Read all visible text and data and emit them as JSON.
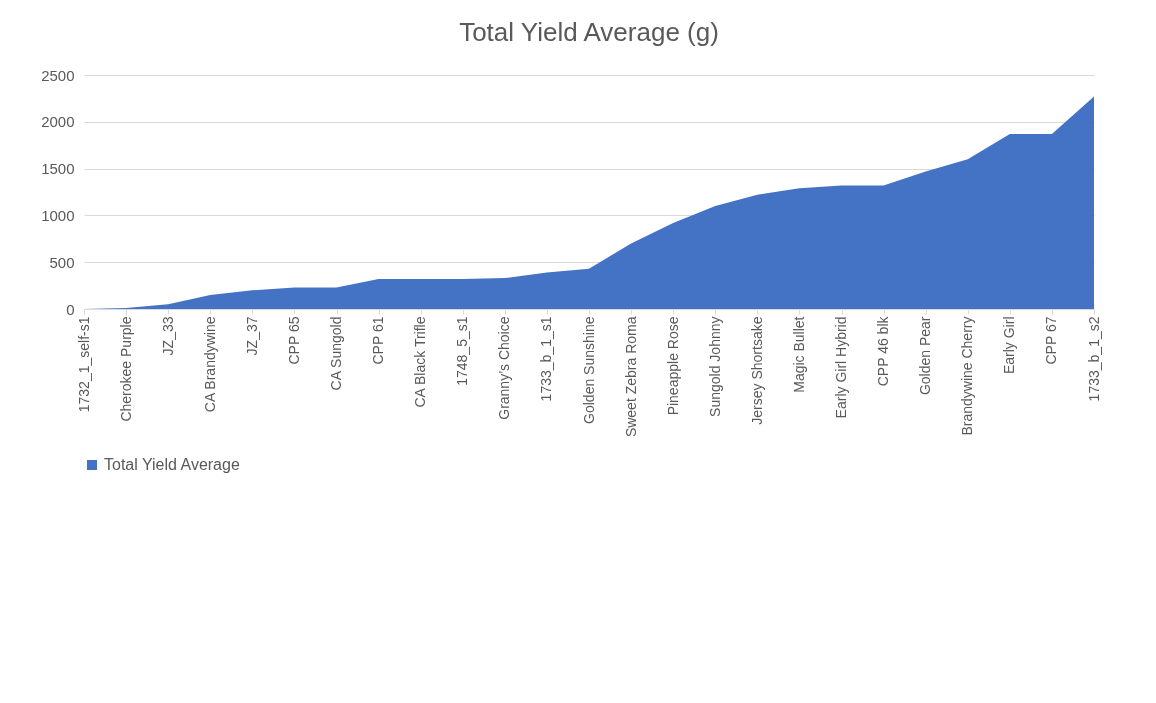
{
  "chart_data": {
    "type": "area",
    "title": "Total Yield Average (g)",
    "categories": [
      "1732_1_self-s1",
      "Cherokee Purple",
      "JZ_33",
      "CA Brandywine",
      "JZ_37",
      "CPP 65",
      "CA Sungold",
      "CPP 61",
      "CA Black Trifle",
      "1748_5_s1",
      "Granny’s Choice",
      "1733_b_1_s1",
      "Golden Sunshine",
      "Sweet Zebra Roma",
      "Pineapple Rose",
      "Sungold Johnny",
      "Jersey Shortsake",
      "Magic Bullet",
      "Early Girl Hybrid",
      "CPP 46 blk",
      "Golden Pear",
      "Brandywine Cherry",
      "Early Girl",
      "CPP 67",
      "1733_b_1_s2"
    ],
    "series": [
      {
        "name": "Total Yield Average",
        "color": "#4472c4",
        "values": [
          0,
          10,
          50,
          150,
          200,
          230,
          230,
          320,
          320,
          320,
          330,
          390,
          430,
          700,
          920,
          1100,
          1220,
          1290,
          1320,
          1320,
          1470,
          1600,
          1870,
          1870,
          2270
        ]
      }
    ],
    "ylim": [
      0,
      2500
    ],
    "yticks": [
      0,
      500,
      1000,
      1500,
      2000,
      2500
    ],
    "grid": "y",
    "legend": "bottom"
  }
}
